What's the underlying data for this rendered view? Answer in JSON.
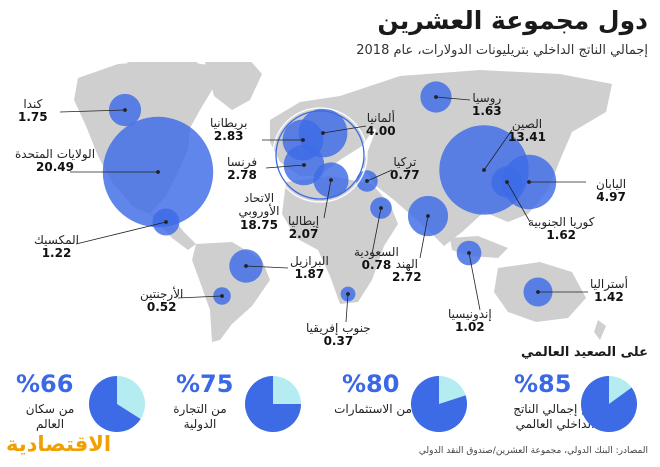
{
  "title": "دول مجموعة العشرين",
  "subtitle": "إجمالي الناتج الداخلي بتريليونات الدولارات، عام 2018",
  "colors": {
    "bubble": "#3d6be6",
    "land": "#cfcfcf",
    "pie_main": "#3d6be6",
    "pie_rest": "#b4ecf2",
    "accent": "#3a68e6"
  },
  "countries": [
    {
      "name": "كندا",
      "value": "1.75"
    },
    {
      "name": "الولايات المتحدة",
      "value": "20.49"
    },
    {
      "name": "المكسيك",
      "value": "1.22"
    },
    {
      "name": "البرازيل",
      "value": "1.87"
    },
    {
      "name": "الأرجنتين",
      "value": "0.52"
    },
    {
      "name": "بريطانيا",
      "value": "2.83"
    },
    {
      "name": "ألمانيا",
      "value": "4.00"
    },
    {
      "name": "فرنسا",
      "value": "2.78"
    },
    {
      "name": "الاتحاد الأوروبي",
      "value": "18.75"
    },
    {
      "name": "إيطاليا",
      "value": "2.07"
    },
    {
      "name": "تركيا",
      "value": "0.77"
    },
    {
      "name": "روسيا",
      "value": "1.63"
    },
    {
      "name": "الصين",
      "value": "13.41"
    },
    {
      "name": "اليابان",
      "value": "4.97"
    },
    {
      "name": "كوريا الجنوبية",
      "value": "1.62"
    },
    {
      "name": "الهند",
      "value": "2.72"
    },
    {
      "name": "السعودية",
      "value": "0.78"
    },
    {
      "name": "إندونيسيا",
      "value": "1.02"
    },
    {
      "name": "أستراليا",
      "value": "1.42"
    },
    {
      "name": "جنوب إفريقيا",
      "value": "0.37"
    }
  ],
  "global": {
    "title": "على الصعيد العالمي",
    "stats": [
      {
        "percent": "%85",
        "label": "من إجمالي الناتج الداخلي العالمي",
        "share": 0.85
      },
      {
        "percent": "%80",
        "label": "من الاستثمارات",
        "share": 0.8
      },
      {
        "percent": "%75",
        "label": "من التجارة الدولية",
        "share": 0.75
      },
      {
        "percent": "%66",
        "label": "من سكان العالم",
        "share": 0.66
      }
    ]
  },
  "source": "المصادر: البنك الدولي، مجموعة العشرين/صندوق النقد الدولي",
  "logo": "الاقتصادية"
}
